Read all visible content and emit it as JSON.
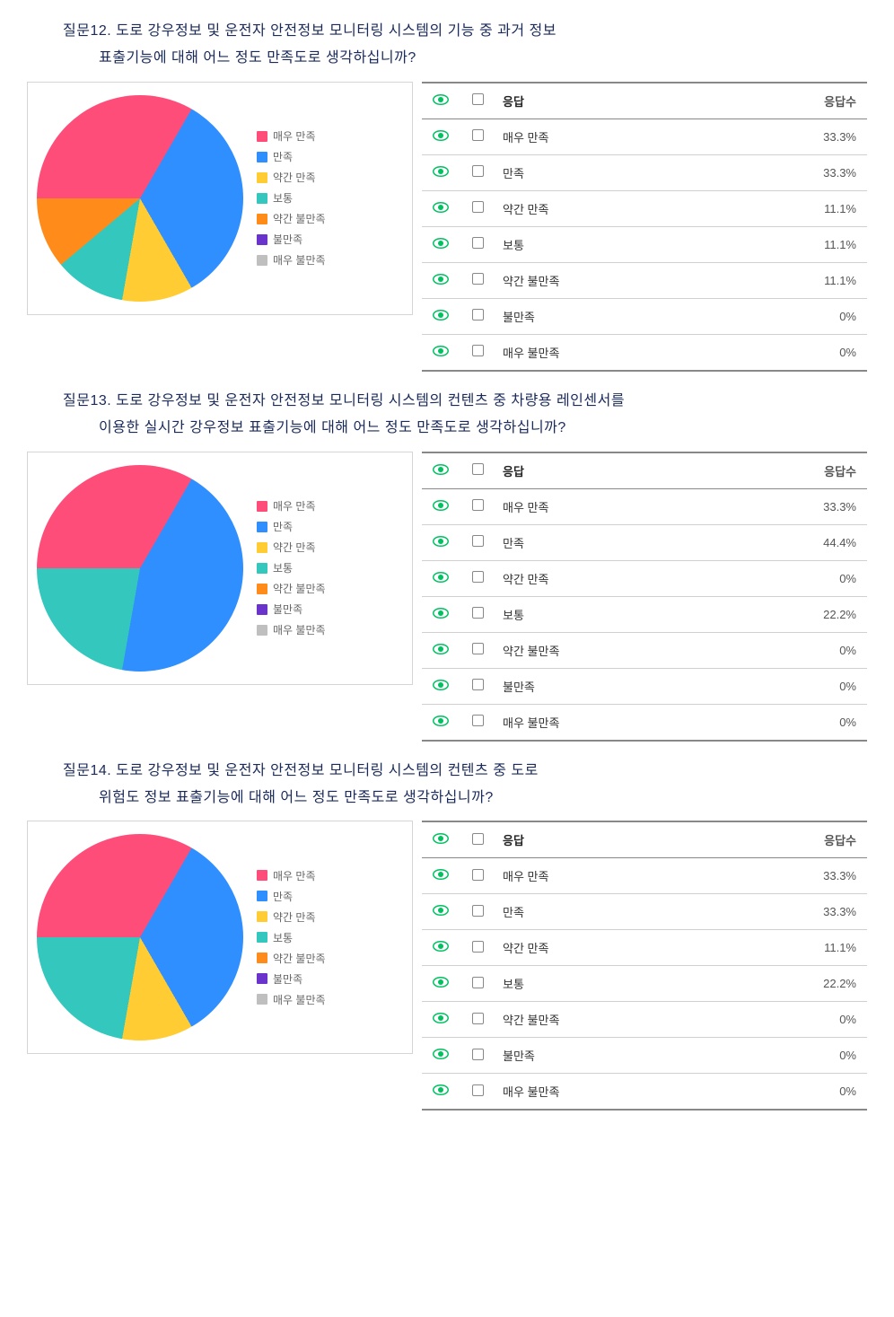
{
  "legend_labels": [
    "매우 만족",
    "만족",
    "약간 만족",
    "보통",
    "약간 불만족",
    "불만족",
    "매우 불만족"
  ],
  "legend_colors": [
    "#ff4d7a",
    "#2f8fff",
    "#ffcc33",
    "#33c7bd",
    "#ff8c1a",
    "#6a33cc",
    "#bfbfbf"
  ],
  "table_headers": {
    "response": "응답",
    "count": "응답수"
  },
  "eye_color": "#00c060",
  "questions": [
    {
      "title_l1": "질문12. 도로 강우정보 및 운전자 안전정보 모니터링 시스템의 기능 중 과거 정보",
      "title_l2": "표출기능에 대해 어느 정도 만족도로 생각하십니까?",
      "values": [
        33.3,
        33.3,
        11.1,
        11.1,
        11.1,
        0,
        0
      ],
      "display": [
        "33.3%",
        "33.3%",
        "11.1%",
        "11.1%",
        "11.1%",
        "0%",
        "0%"
      ]
    },
    {
      "title_l1": "질문13. 도로 강우정보 및 운전자 안전정보 모니터링 시스템의 컨텐츠 중 차량용 레인센서를",
      "title_l2": "이용한 실시간 강우정보 표출기능에 대해 어느 정도 만족도로 생각하십니까?",
      "values": [
        33.3,
        44.4,
        0,
        22.2,
        0,
        0,
        0
      ],
      "display": [
        "33.3%",
        "44.4%",
        "0%",
        "22.2%",
        "0%",
        "0%",
        "0%"
      ]
    },
    {
      "title_l1": "질문14. 도로 강우정보 및 운전자 안전정보 모니터링 시스템의 컨텐츠 중 도로",
      "title_l2": "위험도 정보 표출기능에 대해 어느 정도 만족도로 생각하십니까?",
      "values": [
        33.3,
        33.3,
        11.1,
        22.2,
        0,
        0,
        0
      ],
      "display": [
        "33.3%",
        "33.3%",
        "11.1%",
        "22.2%",
        "0%",
        "0%",
        "0%"
      ]
    }
  ],
  "chart_style": {
    "border_color": "#d5d5d5",
    "background": "#ffffff",
    "pie_stroke": "#ffffff",
    "pie_stroke_width": 2,
    "legend_font_size": 12,
    "table_font_size": 13,
    "question_font_size": 16,
    "question_color": "#1a2a5a"
  }
}
